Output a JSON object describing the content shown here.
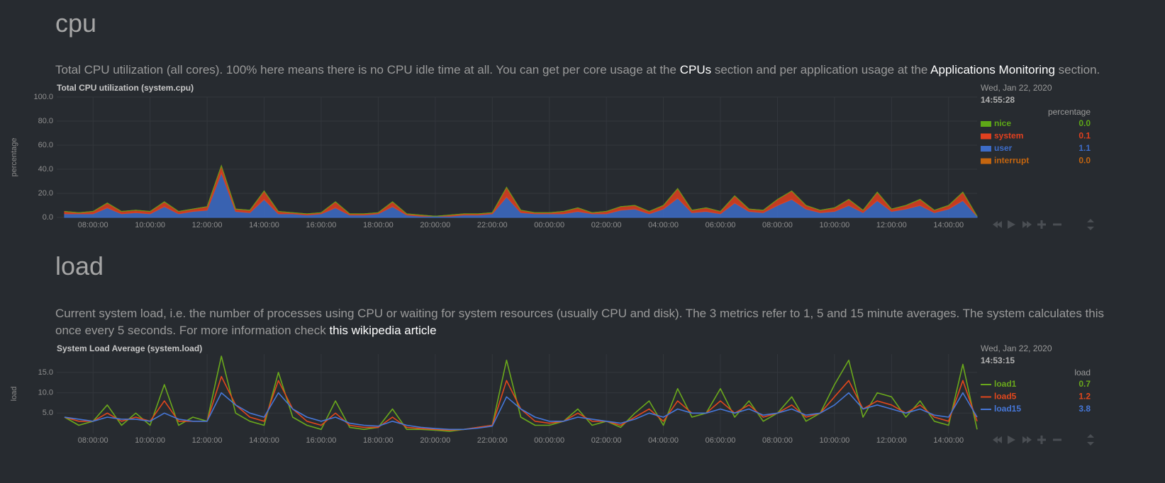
{
  "sections": [
    {
      "heading": "cpu",
      "description": [
        {
          "text": "Total CPU utilization (all cores). 100% here means there is no CPU idle time at all. You can get per core usage at the ",
          "link": false
        },
        {
          "text": "CPUs",
          "link": true
        },
        {
          "text": " section and per application usage at the ",
          "link": false
        },
        {
          "text": "Applications Monitoring",
          "link": true
        },
        {
          "text": " section.",
          "link": false
        }
      ]
    },
    {
      "heading": "load",
      "description": [
        {
          "text": "Current system load, i.e. the number of processes using CPU or waiting for system resources (usually CPU and disk). The 3 metrics refer to 1, 5 and 15 minute averages. The system calculates this once every 5 seconds. For more information check ",
          "link": false
        },
        {
          "text": "this wikipedia article",
          "link": true
        }
      ]
    }
  ],
  "chart_data": [
    {
      "type": "area",
      "stacked": true,
      "title": "Total CPU utilization (system.cpu)",
      "y_label": "percentage",
      "legend_date": "Wed, Jan 22, 2020",
      "legend_time": "14:55:28",
      "units": "percentage",
      "grid": true,
      "categories": [
        null,
        null,
        "08:00:00",
        null,
        null,
        null,
        "10:00:00",
        null,
        null,
        null,
        "12:00:00",
        null,
        null,
        null,
        "14:00:00",
        null,
        null,
        null,
        "16:00:00",
        null,
        null,
        null,
        "18:00:00",
        null,
        null,
        null,
        "20:00:00",
        null,
        null,
        null,
        "22:00:00",
        null,
        null,
        null,
        "00:00:00",
        null,
        null,
        null,
        "02:00:00",
        null,
        null,
        null,
        "04:00:00",
        null,
        null,
        null,
        "06:00:00",
        null,
        null,
        null,
        "08:00:00",
        null,
        null,
        null,
        "10:00:00",
        null,
        null,
        null,
        "12:00:00",
        null,
        null,
        null,
        "14:00:00",
        null,
        null
      ],
      "ylim": [
        0,
        100
      ],
      "yticks": [
        {
          "value": 0,
          "label": "0.0"
        },
        {
          "value": 20,
          "label": "20.0"
        },
        {
          "value": 40,
          "label": "40.0"
        },
        {
          "value": 60,
          "label": "60.0"
        },
        {
          "value": 80,
          "label": "80.0"
        },
        {
          "value": 100,
          "label": "100.0"
        }
      ],
      "series": [
        {
          "name": "nice",
          "color": "#5ea817",
          "current": "0.0",
          "values": [
            0,
            0,
            0,
            0,
            0,
            0,
            0,
            0,
            0,
            0,
            0,
            0,
            0,
            0,
            0,
            0,
            0,
            0,
            0,
            0,
            0,
            0,
            0,
            0,
            0,
            0,
            0,
            0,
            0,
            0,
            0,
            0,
            0,
            0,
            0,
            0,
            0,
            0,
            0,
            0,
            0,
            0,
            0,
            0,
            0,
            0,
            0,
            0,
            0,
            0,
            0,
            0,
            0,
            0,
            0,
            0,
            0,
            0,
            0,
            0,
            0,
            0,
            0,
            0,
            0
          ]
        },
        {
          "name": "system",
          "color": "#e0401f",
          "current": "0.1",
          "values": [
            2,
            1,
            2,
            4,
            2,
            2,
            2,
            4,
            2,
            2,
            3,
            6,
            2,
            2,
            7,
            2,
            1,
            1,
            1,
            5,
            1,
            1,
            1,
            4,
            1,
            1,
            0,
            1,
            1,
            1,
            1,
            8,
            2,
            1,
            1,
            2,
            3,
            1,
            2,
            3,
            3,
            2,
            3,
            8,
            2,
            3,
            2,
            6,
            2,
            2,
            5,
            7,
            3,
            2,
            3,
            5,
            2,
            7,
            2,
            3,
            5,
            2,
            3,
            7,
            0
          ]
        },
        {
          "name": "user",
          "color": "#3d6cc8",
          "current": "1.1",
          "values": [
            3,
            3,
            3,
            8,
            3,
            4,
            3,
            9,
            3,
            5,
            6,
            37,
            5,
            4,
            15,
            3,
            3,
            2,
            3,
            8,
            2,
            2,
            3,
            9,
            2,
            1,
            1,
            1,
            2,
            2,
            3,
            17,
            4,
            3,
            3,
            3,
            5,
            3,
            3,
            6,
            7,
            3,
            7,
            16,
            4,
            5,
            3,
            12,
            5,
            4,
            10,
            15,
            7,
            4,
            5,
            10,
            4,
            14,
            5,
            7,
            10,
            4,
            7,
            14,
            1
          ]
        },
        {
          "name": "interrupt",
          "color": "#c4650f",
          "current": "0.0",
          "values": [
            0,
            0,
            0,
            0,
            0,
            0,
            0,
            0,
            0,
            0,
            0,
            0,
            0,
            0,
            0,
            0,
            0,
            0,
            0,
            0,
            0,
            0,
            0,
            0,
            0,
            0,
            0,
            0,
            0,
            0,
            0,
            0,
            0,
            0,
            0,
            0,
            0,
            0,
            0,
            0,
            0,
            0,
            0,
            0,
            0,
            0,
            0,
            0,
            0,
            0,
            0,
            0,
            0,
            0,
            0,
            0,
            0,
            0,
            0,
            0,
            0,
            0,
            0,
            0,
            0
          ]
        }
      ]
    },
    {
      "type": "line",
      "title": "System Load Average (system.load)",
      "y_label": "load",
      "legend_date": "Wed, Jan 22, 2020",
      "legend_time": "14:53:15",
      "units": "load",
      "grid": true,
      "categories": [
        null,
        null,
        "08:00:00",
        null,
        null,
        null,
        "10:00:00",
        null,
        null,
        null,
        "12:00:00",
        null,
        null,
        null,
        "14:00:00",
        null,
        null,
        null,
        "16:00:00",
        null,
        null,
        null,
        "18:00:00",
        null,
        null,
        null,
        "20:00:00",
        null,
        null,
        null,
        "22:00:00",
        null,
        null,
        null,
        "00:00:00",
        null,
        null,
        null,
        "02:00:00",
        null,
        null,
        null,
        "04:00:00",
        null,
        null,
        null,
        "06:00:00",
        null,
        null,
        null,
        "08:00:00",
        null,
        null,
        null,
        "10:00:00",
        null,
        null,
        null,
        "12:00:00",
        null,
        null,
        null,
        "14:00:00",
        null,
        null
      ],
      "ylim": [
        0,
        19.5
      ],
      "yticks": [
        {
          "value": 5,
          "label": "5.0"
        },
        {
          "value": 10,
          "label": "10.0"
        },
        {
          "value": 15,
          "label": "15.0"
        }
      ],
      "series": [
        {
          "name": "load1",
          "color": "#6aa81c",
          "current": "0.7",
          "values": [
            4,
            2,
            3,
            7,
            2,
            5,
            2,
            12,
            2,
            4,
            3,
            19,
            5,
            3,
            2,
            15,
            4,
            2,
            1,
            8,
            1.5,
            1,
            1.5,
            6,
            1,
            1,
            0.8,
            0.5,
            1,
            1.5,
            2,
            18,
            4,
            2,
            2,
            3,
            6,
            2,
            3,
            1.5,
            5,
            8,
            2,
            11,
            4,
            5,
            11,
            4,
            8,
            3,
            5,
            9,
            3,
            5,
            12,
            18,
            4,
            10,
            9,
            4,
            8,
            3,
            2,
            17,
            1
          ]
        },
        {
          "name": "load5",
          "color": "#e2471c",
          "current": "1.2",
          "values": [
            4,
            3,
            3,
            5,
            3,
            4,
            3,
            8,
            3,
            3,
            3,
            14,
            7,
            4,
            3,
            13,
            6,
            3,
            2,
            5,
            2,
            1.5,
            1.5,
            4,
            1.5,
            1.2,
            1,
            0.8,
            1,
            1.5,
            2,
            13,
            6,
            3,
            2.5,
            3,
            5,
            3,
            3,
            2,
            4,
            6,
            3,
            8,
            5,
            5,
            8,
            5,
            7,
            4,
            5,
            7,
            4,
            5,
            9,
            13,
            6,
            8,
            7,
            5,
            7,
            4,
            3,
            13,
            3
          ]
        },
        {
          "name": "load15",
          "color": "#4677d8",
          "current": "3.8",
          "values": [
            4,
            3.5,
            3,
            4,
            3.5,
            3.5,
            3,
            5,
            3.5,
            3,
            3,
            10,
            7,
            5,
            4,
            10,
            6,
            4,
            3,
            4,
            2.5,
            2,
            1.8,
            3,
            2,
            1.5,
            1.2,
            1,
            1,
            1.3,
            1.8,
            9,
            6,
            4,
            3,
            3,
            4,
            3.5,
            3,
            2.5,
            3.5,
            5,
            4,
            6,
            5,
            5,
            6,
            5,
            6,
            4.5,
            5,
            6,
            4.5,
            5,
            7,
            10,
            6,
            7,
            6,
            5,
            6,
            4.5,
            4,
            10,
            4
          ]
        }
      ]
    }
  ]
}
